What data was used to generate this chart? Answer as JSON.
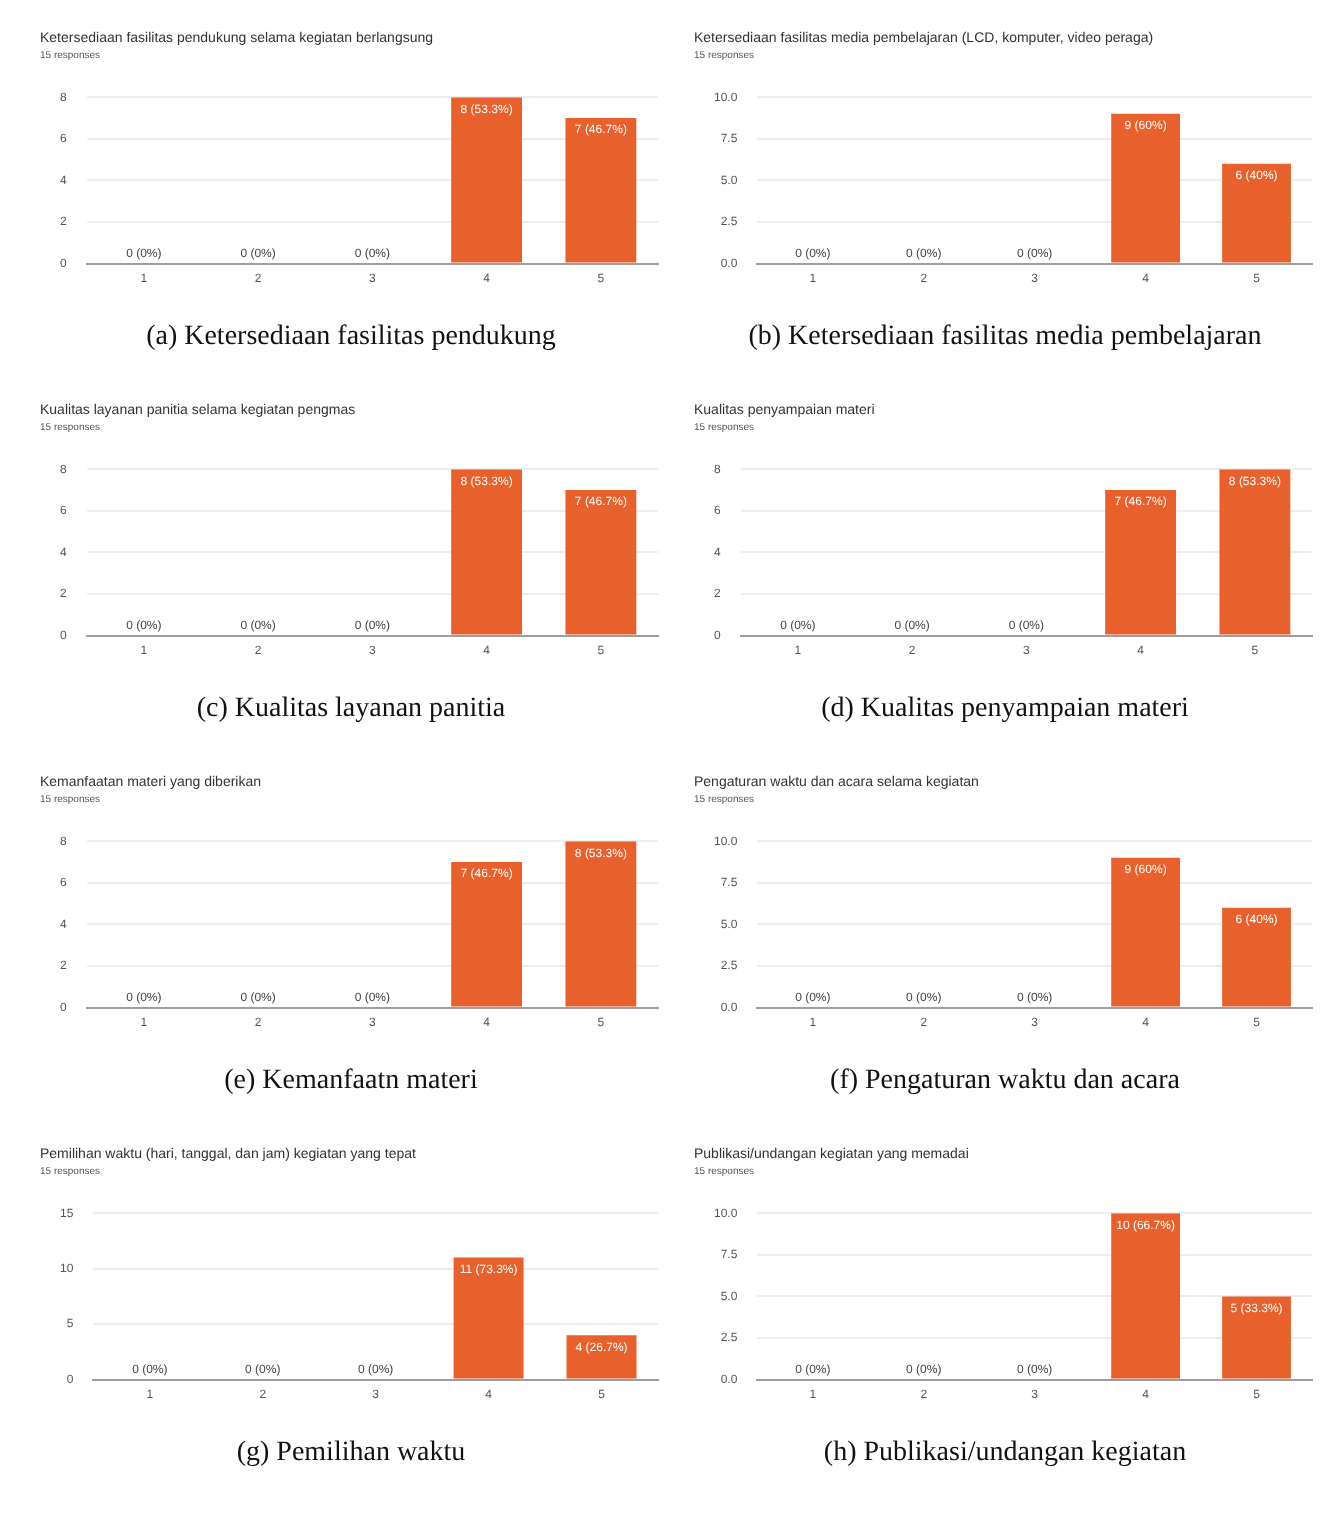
{
  "chart_data": [
    {
      "type": "bar",
      "title": "Ketersediaan fasilitas pendukung selama kegiatan berlangsung",
      "subtitle": "15 responses",
      "annotations": [
        "(a) Ketersediaan fasilitas pendukung"
      ],
      "categories": [
        "1",
        "2",
        "3",
        "4",
        "5"
      ],
      "values": [
        0,
        0,
        0,
        8,
        7
      ],
      "value_labels": [
        "0 (0%)",
        "0 (0%)",
        "0 (0%)",
        "8 (53.3%)",
        "7 (46.7%)"
      ],
      "color": "#e8612c",
      "ylim": [
        0,
        8
      ],
      "yticks": [
        0,
        2,
        4,
        6,
        8
      ],
      "grid": "y"
    },
    {
      "type": "bar",
      "title": "Ketersediaan fasilitas media pembelajaran (LCD, komputer, video peraga)",
      "subtitle": "15 responses",
      "annotations": [
        "(b) Ketersediaan fasilitas media pembelajaran"
      ],
      "categories": [
        "1",
        "2",
        "3",
        "4",
        "5"
      ],
      "values": [
        0,
        0,
        0,
        9,
        6
      ],
      "value_labels": [
        "0 (0%)",
        "0 (0%)",
        "0 (0%)",
        "9 (60%)",
        "6 (40%)"
      ],
      "color": "#e8612c",
      "ylim": [
        0,
        10
      ],
      "yticks": [
        {
          "value": 0,
          "label": "0.0"
        },
        {
          "value": 2.5,
          "label": "2.5"
        },
        {
          "value": 5,
          "label": "5.0"
        },
        {
          "value": 7.5,
          "label": "7.5"
        },
        {
          "value": 10,
          "label": "10.0"
        }
      ],
      "grid": "y"
    },
    {
      "type": "bar",
      "title": "Kualitas layanan panitia selama kegiatan pengmas",
      "subtitle": "15 responses",
      "annotations": [
        "(c) Kualitas layanan panitia"
      ],
      "categories": [
        "1",
        "2",
        "3",
        "4",
        "5"
      ],
      "values": [
        0,
        0,
        0,
        8,
        7
      ],
      "value_labels": [
        "0 (0%)",
        "0 (0%)",
        "0 (0%)",
        "8 (53.3%)",
        "7 (46.7%)"
      ],
      "color": "#e8612c",
      "ylim": [
        0,
        8
      ],
      "yticks": [
        0,
        2,
        4,
        6,
        8
      ],
      "grid": "y"
    },
    {
      "type": "bar",
      "title": "Kualitas penyampaian materi",
      "subtitle": "15 responses",
      "annotations": [
        "(d) Kualitas penyampaian materi"
      ],
      "categories": [
        "1",
        "2",
        "3",
        "4",
        "5"
      ],
      "values": [
        0,
        0,
        0,
        7,
        8
      ],
      "value_labels": [
        "0 (0%)",
        "0 (0%)",
        "0 (0%)",
        "7 (46.7%)",
        "8 (53.3%)"
      ],
      "color": "#e8612c",
      "ylim": [
        0,
        8
      ],
      "yticks": [
        0,
        2,
        4,
        6,
        8
      ],
      "grid": "y"
    },
    {
      "type": "bar",
      "title": "Kemanfaatan materi yang diberikan",
      "subtitle": "15 responses",
      "annotations": [
        "(e) Kemanfaatn materi"
      ],
      "categories": [
        "1",
        "2",
        "3",
        "4",
        "5"
      ],
      "values": [
        0,
        0,
        0,
        7,
        8
      ],
      "value_labels": [
        "0 (0%)",
        "0 (0%)",
        "0 (0%)",
        "7 (46.7%)",
        "8 (53.3%)"
      ],
      "color": "#e8612c",
      "ylim": [
        0,
        8
      ],
      "yticks": [
        0,
        2,
        4,
        6,
        8
      ],
      "grid": "y"
    },
    {
      "type": "bar",
      "title": "Pengaturan waktu dan acara selama kegiatan",
      "subtitle": "15 responses",
      "annotations": [
        "(f) Pengaturan waktu dan acara"
      ],
      "categories": [
        "1",
        "2",
        "3",
        "4",
        "5"
      ],
      "values": [
        0,
        0,
        0,
        9,
        6
      ],
      "value_labels": [
        "0 (0%)",
        "0 (0%)",
        "0 (0%)",
        "9 (60%)",
        "6 (40%)"
      ],
      "color": "#e8612c",
      "ylim": [
        0,
        10
      ],
      "yticks": [
        {
          "value": 0,
          "label": "0.0"
        },
        {
          "value": 2.5,
          "label": "2.5"
        },
        {
          "value": 5,
          "label": "5.0"
        },
        {
          "value": 7.5,
          "label": "7.5"
        },
        {
          "value": 10,
          "label": "10.0"
        }
      ],
      "grid": "y"
    },
    {
      "type": "bar",
      "title": "Pemilihan waktu (hari, tanggal, dan jam) kegiatan yang tepat",
      "subtitle": "15 responses",
      "annotations": [
        "(g) Pemilihan waktu"
      ],
      "categories": [
        "1",
        "2",
        "3",
        "4",
        "5"
      ],
      "values": [
        0,
        0,
        0,
        11,
        4
      ],
      "value_labels": [
        "0 (0%)",
        "0 (0%)",
        "0 (0%)",
        "11 (73.3%)",
        "4 (26.7%)"
      ],
      "color": "#e8612c",
      "ylim": [
        0,
        15
      ],
      "yticks": [
        0,
        5,
        10,
        15
      ],
      "grid": "y"
    },
    {
      "type": "bar",
      "title": "Publikasi/undangan kegiatan yang memadai",
      "subtitle": "15 responses",
      "annotations": [
        "(h) Publikasi/undangan kegiatan"
      ],
      "categories": [
        "1",
        "2",
        "3",
        "4",
        "5"
      ],
      "values": [
        0,
        0,
        0,
        10,
        5
      ],
      "value_labels": [
        "0 (0%)",
        "0 (0%)",
        "0 (0%)",
        "10 (66.7%)",
        "5 (33.3%)"
      ],
      "color": "#e8612c",
      "ylim": [
        0,
        10
      ],
      "yticks": [
        {
          "value": 0,
          "label": "0.0"
        },
        {
          "value": 2.5,
          "label": "2.5"
        },
        {
          "value": 5,
          "label": "5.0"
        },
        {
          "value": 7.5,
          "label": "7.5"
        },
        {
          "value": 10,
          "label": "10.0"
        }
      ],
      "grid": "y"
    }
  ]
}
